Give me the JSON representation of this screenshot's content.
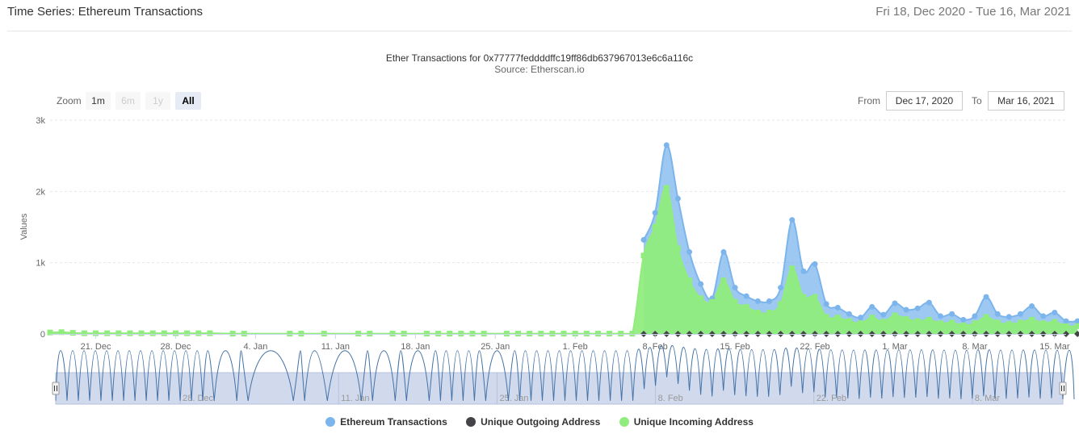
{
  "header": {
    "title": "Time Series: Ethereum Transactions",
    "date_range": "Fri 18, Dec 2020 - Tue 16, Mar 2021"
  },
  "range_selector": {
    "zoom_label": "Zoom",
    "buttons": [
      {
        "label": "1m",
        "state": "enabled"
      },
      {
        "label": "6m",
        "state": "disabled"
      },
      {
        "label": "1y",
        "state": "disabled"
      },
      {
        "label": "All",
        "state": "selected"
      }
    ],
    "from_label": "From",
    "from_value": "Dec 17, 2020",
    "to_label": "To",
    "to_value": "Mar 16, 2021"
  },
  "navigator": {
    "tick_labels": [
      "28. Dec",
      "11. Jan",
      "25. Jan",
      "8. Feb",
      "22. Feb",
      "8. Mar"
    ],
    "handle_glyph": "|||"
  },
  "colors": {
    "tx": "#7cb5ec",
    "out": "#434348",
    "in": "#90ed7d",
    "grid": "#e6e6e6",
    "navigator_fill": "#ccd6eb",
    "navigator_line": "#4572a7"
  },
  "chart_data": {
    "type": "area",
    "title": "Ether Transactions for 0x77777feddddffc19ff86db637967013e6c6a116c",
    "subtitle": "Source: Etherscan.io",
    "ylabel": "Values",
    "ylim": [
      0,
      3000
    ],
    "y_ticks": [
      {
        "value": 0,
        "label": "0"
      },
      {
        "value": 1000,
        "label": "1k"
      },
      {
        "value": 2000,
        "label": "2k"
      },
      {
        "value": 3000,
        "label": "3k"
      }
    ],
    "x_ticks": [
      {
        "date": "2020-12-21",
        "label": "21. Dec"
      },
      {
        "date": "2020-12-28",
        "label": "28. Dec"
      },
      {
        "date": "2021-01-04",
        "label": "4. Jan"
      },
      {
        "date": "2021-01-11",
        "label": "11. Jan"
      },
      {
        "date": "2021-01-18",
        "label": "18. Jan"
      },
      {
        "date": "2021-01-25",
        "label": "25. Jan"
      },
      {
        "date": "2021-02-01",
        "label": "1. Feb"
      },
      {
        "date": "2021-02-08",
        "label": "8. Feb"
      },
      {
        "date": "2021-02-15",
        "label": "15. Feb"
      },
      {
        "date": "2021-02-22",
        "label": "22. Feb"
      },
      {
        "date": "2021-03-01",
        "label": "1. Mar"
      },
      {
        "date": "2021-03-08",
        "label": "8. Mar"
      },
      {
        "date": "2021-03-15",
        "label": "15. Mar"
      }
    ],
    "legend_position": "bottom-center",
    "grid": true,
    "x_start": "2020-12-17",
    "x_end": "2021-03-16",
    "series": [
      {
        "name": "Ethereum Transactions",
        "marker": "circle",
        "points": [
          [
            "2021-02-07",
            1320
          ],
          [
            "2021-02-08",
            1700
          ],
          [
            "2021-02-09",
            2650
          ],
          [
            "2021-02-10",
            1900
          ],
          [
            "2021-02-11",
            1150
          ],
          [
            "2021-02-12",
            700
          ],
          [
            "2021-02-13",
            500
          ],
          [
            "2021-02-14",
            1150
          ],
          [
            "2021-02-15",
            650
          ],
          [
            "2021-02-16",
            530
          ],
          [
            "2021-02-17",
            460
          ],
          [
            "2021-02-18",
            460
          ],
          [
            "2021-02-19",
            650
          ],
          [
            "2021-02-20",
            1600
          ],
          [
            "2021-02-21",
            880
          ],
          [
            "2021-02-22",
            980
          ],
          [
            "2021-02-23",
            420
          ],
          [
            "2021-02-24",
            370
          ],
          [
            "2021-02-25",
            280
          ],
          [
            "2021-02-26",
            230
          ],
          [
            "2021-02-27",
            380
          ],
          [
            "2021-02-28",
            270
          ],
          [
            "2021-03-01",
            430
          ],
          [
            "2021-03-02",
            340
          ],
          [
            "2021-03-03",
            360
          ],
          [
            "2021-03-04",
            440
          ],
          [
            "2021-03-05",
            250
          ],
          [
            "2021-03-06",
            280
          ],
          [
            "2021-03-07",
            200
          ],
          [
            "2021-03-08",
            250
          ],
          [
            "2021-03-09",
            520
          ],
          [
            "2021-03-10",
            280
          ],
          [
            "2021-03-11",
            240
          ],
          [
            "2021-03-12",
            280
          ],
          [
            "2021-03-13",
            390
          ],
          [
            "2021-03-14",
            250
          ],
          [
            "2021-03-15",
            300
          ],
          [
            "2021-03-16",
            180
          ],
          [
            "2021-03-17",
            180
          ]
        ]
      },
      {
        "name": "Unique Outgoing Address",
        "marker": "diamond",
        "points": [
          [
            "2021-02-07",
            0
          ],
          [
            "2021-02-08",
            0
          ],
          [
            "2021-02-09",
            0
          ],
          [
            "2021-02-10",
            0
          ],
          [
            "2021-02-11",
            0
          ],
          [
            "2021-02-12",
            0
          ],
          [
            "2021-02-13",
            0
          ],
          [
            "2021-02-14",
            0
          ],
          [
            "2021-02-15",
            0
          ],
          [
            "2021-02-16",
            0
          ],
          [
            "2021-02-17",
            0
          ],
          [
            "2021-02-18",
            0
          ],
          [
            "2021-02-19",
            0
          ],
          [
            "2021-02-20",
            0
          ],
          [
            "2021-02-21",
            0
          ],
          [
            "2021-02-22",
            0
          ],
          [
            "2021-02-23",
            0
          ],
          [
            "2021-02-24",
            0
          ],
          [
            "2021-02-25",
            0
          ],
          [
            "2021-02-26",
            0
          ],
          [
            "2021-02-27",
            0
          ],
          [
            "2021-02-28",
            0
          ],
          [
            "2021-03-01",
            0
          ],
          [
            "2021-03-02",
            0
          ],
          [
            "2021-03-03",
            0
          ],
          [
            "2021-03-04",
            0
          ],
          [
            "2021-03-05",
            0
          ],
          [
            "2021-03-06",
            0
          ],
          [
            "2021-03-07",
            0
          ],
          [
            "2021-03-08",
            0
          ],
          [
            "2021-03-09",
            0
          ],
          [
            "2021-03-10",
            0
          ],
          [
            "2021-03-11",
            0
          ],
          [
            "2021-03-12",
            0
          ],
          [
            "2021-03-13",
            0
          ],
          [
            "2021-03-14",
            0
          ],
          [
            "2021-03-15",
            0
          ],
          [
            "2021-03-16",
            0
          ],
          [
            "2021-03-17",
            0
          ]
        ]
      },
      {
        "name": "Unique Incoming Address",
        "marker": "square",
        "points": [
          [
            "2020-12-17",
            20
          ],
          [
            "2020-12-18",
            25
          ],
          [
            "2020-12-19",
            15
          ],
          [
            "2020-12-20",
            10
          ],
          [
            "2020-12-21",
            10
          ],
          [
            "2020-12-22",
            10
          ],
          [
            "2020-12-23",
            10
          ],
          [
            "2020-12-24",
            10
          ],
          [
            "2020-12-25",
            10
          ],
          [
            "2020-12-26",
            10
          ],
          [
            "2020-12-27",
            10
          ],
          [
            "2020-12-28",
            10
          ],
          [
            "2020-12-29",
            10
          ],
          [
            "2020-12-30",
            10
          ],
          [
            "2020-12-31",
            10
          ],
          [
            "2021-01-02",
            5
          ],
          [
            "2021-01-03",
            5
          ],
          [
            "2021-01-07",
            5
          ],
          [
            "2021-01-08",
            5
          ],
          [
            "2021-01-10",
            5
          ],
          [
            "2021-01-13",
            5
          ],
          [
            "2021-01-14",
            5
          ],
          [
            "2021-01-16",
            5
          ],
          [
            "2021-01-17",
            5
          ],
          [
            "2021-01-19",
            5
          ],
          [
            "2021-01-20",
            5
          ],
          [
            "2021-01-21",
            5
          ],
          [
            "2021-01-22",
            5
          ],
          [
            "2021-01-23",
            5
          ],
          [
            "2021-01-24",
            5
          ],
          [
            "2021-01-26",
            5
          ],
          [
            "2021-01-27",
            5
          ],
          [
            "2021-01-28",
            5
          ],
          [
            "2021-01-29",
            5
          ],
          [
            "2021-01-30",
            5
          ],
          [
            "2021-01-31",
            5
          ],
          [
            "2021-02-01",
            5
          ],
          [
            "2021-02-02",
            5
          ],
          [
            "2021-02-03",
            5
          ],
          [
            "2021-02-04",
            5
          ],
          [
            "2021-02-05",
            5
          ],
          [
            "2021-02-06",
            5
          ],
          [
            "2021-02-07",
            1100
          ],
          [
            "2021-02-08",
            1500
          ],
          [
            "2021-02-09",
            2050
          ],
          [
            "2021-02-10",
            1200
          ],
          [
            "2021-02-11",
            750
          ],
          [
            "2021-02-12",
            500
          ],
          [
            "2021-02-13",
            450
          ],
          [
            "2021-02-14",
            750
          ],
          [
            "2021-02-15",
            450
          ],
          [
            "2021-02-16",
            380
          ],
          [
            "2021-02-17",
            300
          ],
          [
            "2021-02-18",
            300
          ],
          [
            "2021-02-19",
            420
          ],
          [
            "2021-02-20",
            920
          ],
          [
            "2021-02-21",
            520
          ],
          [
            "2021-02-22",
            520
          ],
          [
            "2021-02-23",
            240
          ],
          [
            "2021-02-24",
            230
          ],
          [
            "2021-02-25",
            180
          ],
          [
            "2021-02-26",
            150
          ],
          [
            "2021-02-27",
            230
          ],
          [
            "2021-02-28",
            170
          ],
          [
            "2021-03-01",
            260
          ],
          [
            "2021-03-02",
            210
          ],
          [
            "2021-03-03",
            180
          ],
          [
            "2021-03-04",
            200
          ],
          [
            "2021-03-05",
            150
          ],
          [
            "2021-03-06",
            160
          ],
          [
            "2021-03-07",
            120
          ],
          [
            "2021-03-08",
            150
          ],
          [
            "2021-03-09",
            240
          ],
          [
            "2021-03-10",
            160
          ],
          [
            "2021-03-11",
            140
          ],
          [
            "2021-03-12",
            160
          ],
          [
            "2021-03-13",
            200
          ],
          [
            "2021-03-14",
            150
          ],
          [
            "2021-03-15",
            170
          ],
          [
            "2021-03-16",
            110
          ],
          [
            "2021-03-17",
            110
          ]
        ]
      }
    ]
  }
}
